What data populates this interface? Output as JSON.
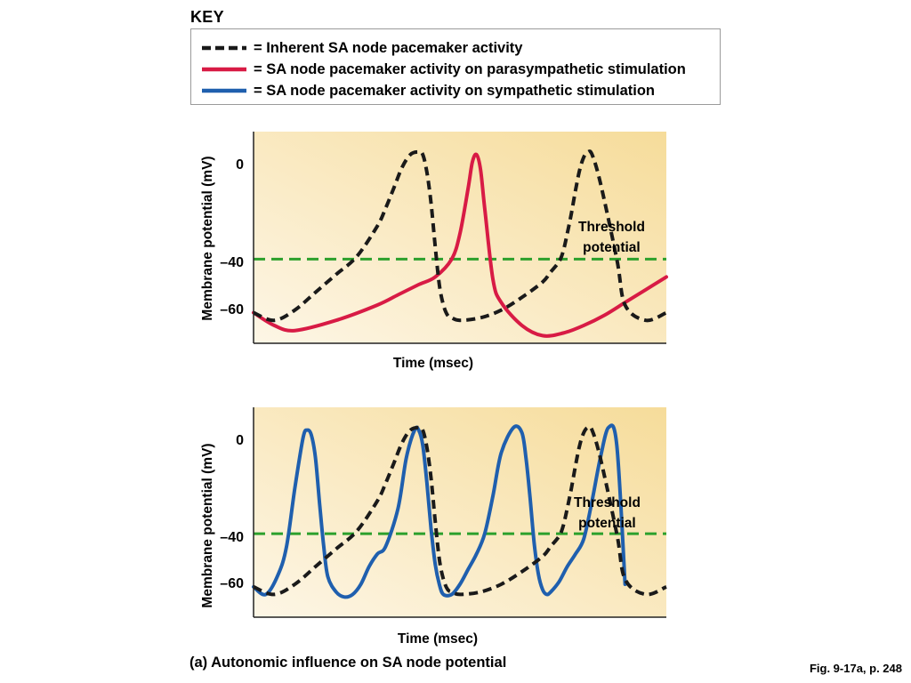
{
  "key": {
    "title": "KEY",
    "items": [
      {
        "label": "= Inherent SA node pacemaker activity",
        "color": "#1a1a1a",
        "style": "dashed"
      },
      {
        "label": "= SA node pacemaker activity on parasympathetic stimulation",
        "color": "#d81b45",
        "style": "solid"
      },
      {
        "label": "= SA node pacemaker activity on sympathetic stimulation",
        "color": "#1f5fae",
        "style": "solid"
      }
    ]
  },
  "caption": "(a) Autonomic influence on SA node potential",
  "fig_ref": "Fig. 9-17a, p. 248",
  "colors": {
    "plot_bg_top": "#f6dc9a",
    "plot_bg_bottom": "#fdf6e6",
    "threshold": "#2ca02c"
  },
  "chart_data": [
    {
      "type": "line",
      "xlabel": "Time (msec)",
      "ylabel": "Membrane potential (mV)",
      "ytick_labels": [
        "0",
        "–40",
        "–60"
      ],
      "yticks": [
        0,
        -40,
        -60
      ],
      "ylim": [
        -73,
        10
      ],
      "xlim": [
        0,
        100
      ],
      "threshold": {
        "value": -40,
        "label_line1": "Threshold",
        "label_line2": "potential"
      },
      "series": [
        {
          "ref": "inherent",
          "style": "dashed",
          "color": "#1a1a1a",
          "x": [
            0,
            5,
            10,
            15,
            20,
            25,
            30,
            32,
            34,
            36,
            38,
            40,
            41,
            42,
            43,
            44,
            45,
            46,
            47,
            48,
            50,
            55,
            60,
            65,
            70,
            72,
            74,
            75,
            76,
            77,
            78,
            79,
            80,
            81,
            82,
            84,
            88,
            90,
            95,
            100
          ],
          "y": [
            -61,
            -64,
            -60,
            -53,
            -46,
            -39,
            -27,
            -20,
            -12,
            -4,
            1,
            2,
            1,
            -6,
            -18,
            -35,
            -50,
            -58,
            -62,
            -63,
            -64,
            -63,
            -60,
            -55,
            -49,
            -45,
            -41,
            -37,
            -30,
            -22,
            -13,
            -5,
            0,
            2,
            1,
            -10,
            -40,
            -58,
            -64,
            -61
          ]
        },
        {
          "ref": "parasympathetic",
          "style": "solid",
          "color": "#d81b45",
          "x": [
            0,
            5,
            10,
            20,
            30,
            35,
            40,
            44,
            48,
            50,
            52,
            53,
            54,
            55,
            56,
            58,
            60,
            65,
            70,
            75,
            80,
            85,
            90,
            95,
            100
          ],
          "y": [
            -61,
            -66,
            -68,
            -64,
            -58,
            -54,
            -50,
            -47,
            -40,
            -30,
            -12,
            -2,
            1,
            -5,
            -20,
            -48,
            -57,
            -66,
            -70,
            -69,
            -66,
            -62,
            -57,
            -52,
            -47
          ]
        }
      ]
    },
    {
      "type": "line",
      "xlabel": "Time (msec)",
      "ylabel": "Membrane potential (mV)",
      "ytick_labels": [
        "0",
        "–40",
        "–60"
      ],
      "yticks": [
        0,
        -40,
        -60
      ],
      "ylim": [
        -73,
        10
      ],
      "xlim": [
        0,
        100
      ],
      "threshold": {
        "value": -40,
        "label_line1": "Threshold",
        "label_line2": "potential"
      },
      "series": [
        {
          "ref": "inherent",
          "style": "dashed",
          "color": "#1a1a1a",
          "x": [
            0,
            5,
            10,
            15,
            20,
            25,
            30,
            32,
            34,
            36,
            38,
            40,
            41,
            42,
            43,
            44,
            45,
            46,
            47,
            48,
            50,
            55,
            60,
            65,
            70,
            72,
            74,
            75,
            76,
            77,
            78,
            79,
            80,
            81,
            82,
            84,
            88,
            90,
            95,
            100
          ],
          "y": [
            -61,
            -64,
            -60,
            -53,
            -46,
            -39,
            -27,
            -20,
            -12,
            -4,
            1,
            2,
            1,
            -6,
            -18,
            -35,
            -50,
            -58,
            -62,
            -63,
            -64,
            -63,
            -60,
            -55,
            -49,
            -45,
            -41,
            -37,
            -30,
            -22,
            -13,
            -5,
            0,
            2,
            1,
            -10,
            -40,
            -58,
            -64,
            -61
          ]
        },
        {
          "ref": "sympathetic",
          "style": "solid",
          "color": "#1f5fae",
          "x": [
            0,
            3,
            6,
            8,
            10,
            12,
            13,
            14,
            15,
            16,
            17,
            18,
            20,
            22,
            24,
            26,
            28,
            30,
            32,
            35,
            37,
            39,
            40,
            41,
            42,
            43,
            44,
            45,
            46,
            48,
            50,
            52,
            54,
            56,
            58,
            60,
            63,
            65,
            66,
            67,
            68,
            69,
            70,
            71,
            72,
            74,
            76,
            78,
            80,
            82,
            84,
            86,
            88,
            90
          ],
          "y": [
            -61,
            -64,
            -56,
            -45,
            -22,
            -2,
            1,
            -1,
            -10,
            -28,
            -45,
            -57,
            -63,
            -65,
            -64,
            -60,
            -53,
            -48,
            -45,
            -30,
            -10,
            1,
            1,
            -5,
            -20,
            -38,
            -52,
            -60,
            -64,
            -64,
            -60,
            -54,
            -48,
            -40,
            -25,
            -8,
            2,
            0,
            -10,
            -26,
            -44,
            -56,
            -62,
            -64,
            -63,
            -59,
            -53,
            -48,
            -42,
            -27,
            -10,
            2,
            -5,
            -60
          ]
        }
      ]
    }
  ]
}
